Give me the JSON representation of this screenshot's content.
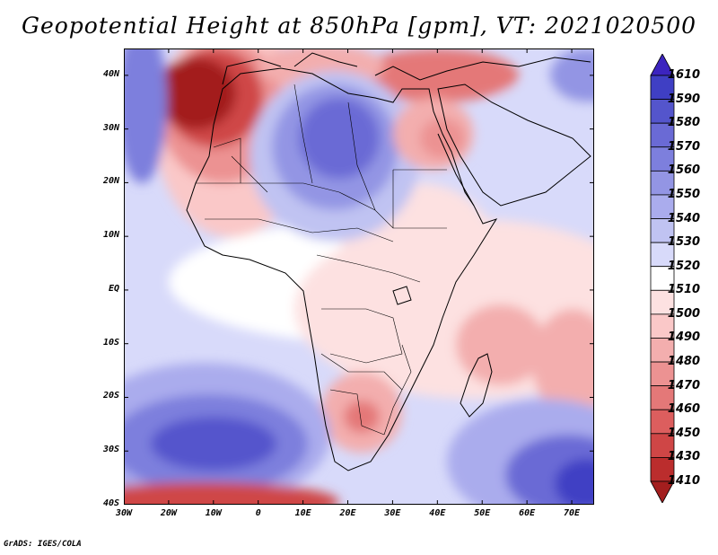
{
  "title": "Geopotential Height at 850hPa [gpm], VT: 2021020500",
  "footer": "GrADS: IGES/COLA",
  "map": {
    "region": "Africa",
    "lon_range": [
      -30,
      75
    ],
    "lat_range": [
      -40,
      45
    ],
    "lat_ticks": [
      "40N",
      "30N",
      "20N",
      "10N",
      "EQ",
      "10S",
      "20S",
      "30S",
      "40S"
    ],
    "lon_ticks": [
      "30W",
      "20W",
      "10W",
      "0",
      "10E",
      "20E",
      "30E",
      "40E",
      "50E",
      "60E",
      "70E"
    ],
    "features": [
      {
        "name": "Azores high (lon -18, lat 33)",
        "level": 1410
      },
      {
        "name": "Sahara/Libya low (lon 18, lat 27)",
        "level": 1580
      },
      {
        "name": "Egypt high (lon 32, lat 29)",
        "level": 1480
      },
      {
        "name": "South Atlantic low (lon -13, lat -29)",
        "level": 1580
      },
      {
        "name": "Southwest Indian Ocean low (lon 72, lat -35)",
        "level": 1590
      },
      {
        "name": "Botswana high (lon 23, lat -23)",
        "level": 1470
      },
      {
        "name": "Mascarene high (lon 54, lat -11)",
        "level": 1480
      }
    ]
  },
  "colorbar": {
    "levels": [
      "1610",
      "1590",
      "1580",
      "1570",
      "1560",
      "1550",
      "1540",
      "1530",
      "1520",
      "1510",
      "1500",
      "1490",
      "1480",
      "1470",
      "1460",
      "1450",
      "1430",
      "1410"
    ],
    "colors": [
      "#3c24bf",
      "#3f3fc4",
      "#5455cc",
      "#6a6ad5",
      "#7d7fdd",
      "#9395e4",
      "#aaaced",
      "#c0c3f2",
      "#d8dafa",
      "#ffffff",
      "#fde1e1",
      "#fac8c8",
      "#f3aeae",
      "#ec9292",
      "#e47878",
      "#dc5e5e",
      "#cf4646",
      "#bb2d2d",
      "#a31e1e"
    ]
  }
}
